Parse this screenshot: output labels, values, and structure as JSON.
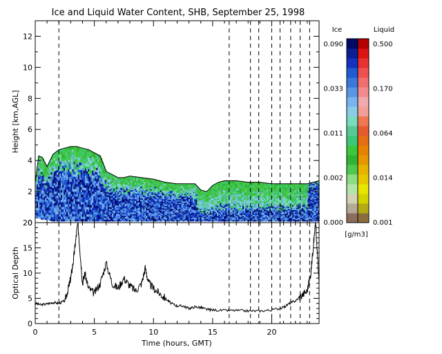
{
  "chart_data": [
    {
      "type": "heatmap",
      "title": "Ice and Liquid Water Content, SHB, September 25, 1998",
      "ylabel": "Height [km,AGL]",
      "ylim": [
        0,
        13
      ],
      "yticks": [
        0,
        2,
        4,
        6,
        8,
        10,
        12
      ],
      "xlim": [
        0,
        24
      ],
      "dashed_times": [
        2,
        16.4,
        18.2,
        18.9,
        20,
        20.7,
        21.6,
        22.4,
        23.2
      ],
      "cloud_boundary_km": {
        "x": [
          0,
          0.3,
          0.6,
          1.0,
          1.5,
          2.0,
          2.5,
          3.0,
          3.5,
          4.0,
          4.5,
          5.0,
          5.5,
          6.0,
          6.5,
          7.0,
          7.5,
          8.0,
          9.0,
          10.0,
          11.0,
          12.0,
          13.0,
          13.5,
          14.0,
          14.5,
          15.0,
          15.5,
          16.0,
          17.0,
          18.0,
          19.0,
          20.0,
          21.0,
          22.0,
          23.0,
          23.5,
          24.0
        ],
        "top": [
          2.6,
          4.3,
          4.2,
          3.6,
          4.4,
          4.7,
          4.8,
          4.9,
          4.9,
          4.8,
          4.7,
          4.5,
          4.3,
          3.3,
          3.1,
          2.9,
          2.9,
          3.0,
          2.9,
          2.8,
          2.6,
          2.5,
          2.5,
          2.5,
          2.1,
          2.0,
          2.4,
          2.6,
          2.7,
          2.7,
          2.6,
          2.6,
          2.5,
          2.5,
          2.5,
          2.5,
          2.6,
          2.7
        ],
        "base": [
          0.3,
          0.3,
          0.2,
          0.2,
          0.1,
          0.1,
          0.1,
          0.1,
          0.1,
          0.1,
          0.1,
          0.1,
          0.1,
          0.1,
          0.1,
          0.1,
          0.1,
          0.1,
          0.1,
          0.1,
          0.1,
          0.1,
          0.1,
          0.1,
          0.1,
          0.1,
          0.1,
          0.1,
          0.1,
          0.1,
          0.1,
          0.1,
          0.1,
          0.1,
          0.1,
          0.1,
          0.1,
          0.1
        ]
      }
    },
    {
      "type": "line",
      "xlabel": "Time (hours, GMT)",
      "ylabel": "Optical Depth",
      "xlim": [
        0,
        24
      ],
      "ylim": [
        0,
        20
      ],
      "xticks": [
        0,
        5,
        10,
        15,
        20
      ],
      "yticks": [
        0,
        5,
        10,
        15,
        20
      ],
      "series": [
        {
          "x": [
            0,
            0.5,
            1.0,
            1.5,
            2.0,
            2.5,
            2.8,
            3.0,
            3.2,
            3.4,
            3.6,
            3.8,
            4.0,
            4.2,
            4.5,
            5.0,
            5.5,
            6.0,
            6.5,
            7.0,
            7.5,
            8.0,
            8.5,
            9.0,
            9.3,
            9.6,
            10.0,
            10.5,
            11.0,
            11.5,
            12.0,
            12.5,
            13.0,
            13.5,
            14.0,
            14.5,
            15.0,
            16.0,
            17.0,
            18.0,
            19.0,
            20.0,
            21.0,
            21.5,
            22.0,
            22.5,
            23.0,
            23.3,
            23.5,
            23.7,
            24.0
          ],
          "y": [
            4,
            3.7,
            3.9,
            4.2,
            4.0,
            4.5,
            7,
            9,
            12,
            16,
            20,
            14,
            8,
            10,
            7,
            6,
            8,
            12,
            8,
            7,
            9,
            7.5,
            6.5,
            8,
            11,
            8,
            7,
            6,
            5,
            4,
            3.5,
            3.5,
            3.0,
            3.3,
            3.2,
            2.8,
            2.7,
            2.6,
            2.6,
            2.5,
            2.5,
            2.7,
            3.2,
            4,
            4.5,
            5.5,
            6.5,
            10,
            15,
            20,
            8
          ]
        }
      ]
    }
  ],
  "colorbar": {
    "ice_title": "Ice",
    "liquid_title": "Liquid",
    "unit": "[g/m3]",
    "ice_ticks": [
      "0.090",
      "0.033",
      "0.011",
      "0.002",
      "0.000"
    ],
    "liquid_ticks": [
      "0.500",
      "0.170",
      "0.064",
      "0.014",
      "0.001"
    ],
    "ice_colors": [
      "#8c6e5a",
      "#b4aa96",
      "#d2d2b4",
      "#b4e6aa",
      "#8cdc82",
      "#50c850",
      "#32b432",
      "#3cc83c",
      "#3cc878",
      "#5ac896",
      "#78dcbe",
      "#8ccde6",
      "#78b4f0",
      "#5a96e6",
      "#3c78dc",
      "#1e5ad2",
      "#1432be",
      "#0a1e96",
      "#000a64"
    ],
    "liquid_colors": [
      "#8c6e3c",
      "#b4aa14",
      "#d2d200",
      "#e6e600",
      "#e6c800",
      "#e6b400",
      "#e69600",
      "#e68200",
      "#e66e14",
      "#e65a32",
      "#f07850",
      "#f0a096",
      "#f0aaaa",
      "#f08c8c",
      "#f07070",
      "#ee5050",
      "#e63232",
      "#dc1414",
      "#b40000"
    ]
  }
}
